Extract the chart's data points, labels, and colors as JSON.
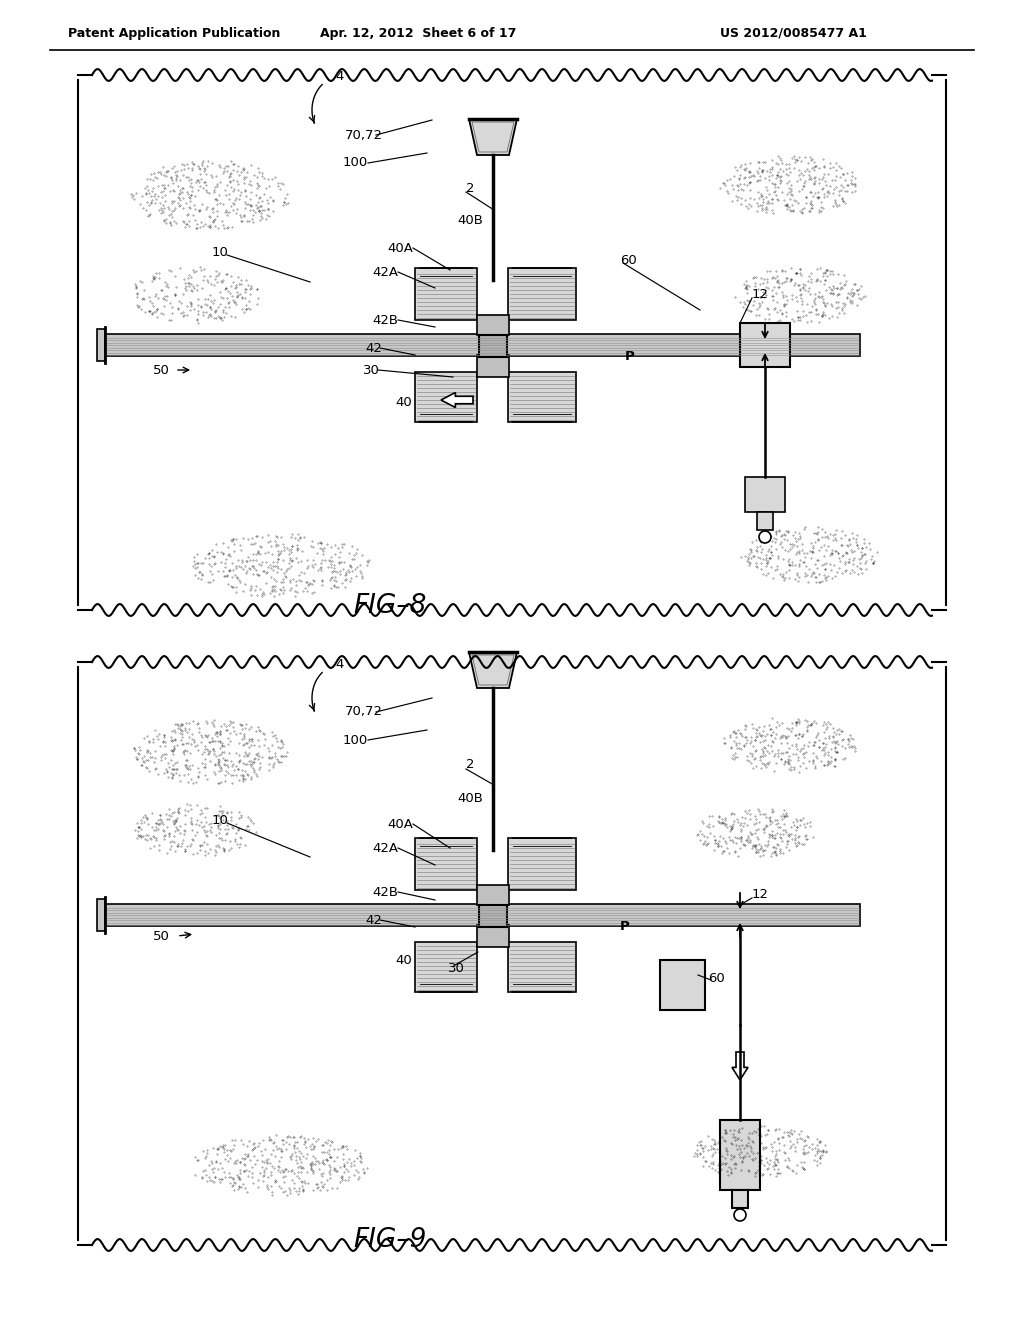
{
  "header_left": "Patent Application Publication",
  "header_center": "Apr. 12, 2012  Sheet 6 of 17",
  "header_right": "US 2012/0085477 A1",
  "fig8_label": "FIG–8",
  "fig9_label": "FIG–9",
  "bg_color": "#ffffff",
  "draw_color": "#000000",
  "light_fill": "#d8d8d8",
  "mid_fill": "#c0c0c0",
  "dark_fill": "#b0b0b0"
}
